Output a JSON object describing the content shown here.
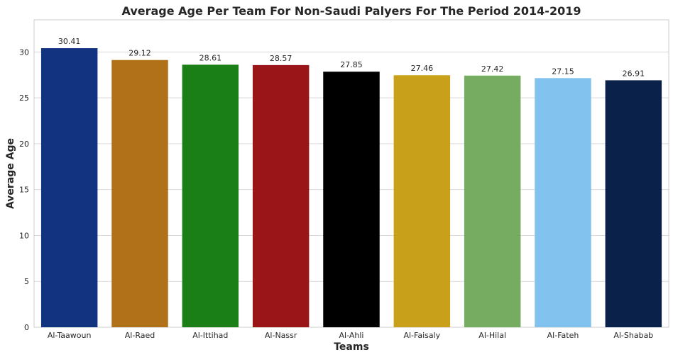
{
  "chart_data": {
    "type": "bar",
    "title": "Average Age Per Team For Non-Saudi Palyers For The Period 2014-2019",
    "xlabel": "Teams",
    "ylabel": "Average Age",
    "categories": [
      "Al-Taawoun",
      "Al-Raed",
      "Al-Ittihad",
      "Al-Nassr",
      "Al-Ahli",
      "Al-Faisaly",
      "Al-Hilal",
      "Al-Fateh",
      "Al-Shabab"
    ],
    "values": [
      30.41,
      29.12,
      28.61,
      28.57,
      27.85,
      27.46,
      27.42,
      27.15,
      26.91
    ],
    "value_labels": [
      "30.41",
      "29.12",
      "28.61",
      "28.57",
      "27.85",
      "27.46",
      "27.42",
      "27.15",
      "26.91"
    ],
    "colors": [
      "#12337f",
      "#b07118",
      "#1a7f16",
      "#9a1518",
      "#000000",
      "#c9a01a",
      "#76ab62",
      "#82c2ef",
      "#0a214a"
    ],
    "ylim": [
      0,
      33.5
    ],
    "yticks": [
      0,
      5,
      10,
      15,
      20,
      25,
      30
    ],
    "grid": true,
    "legend": "none"
  }
}
